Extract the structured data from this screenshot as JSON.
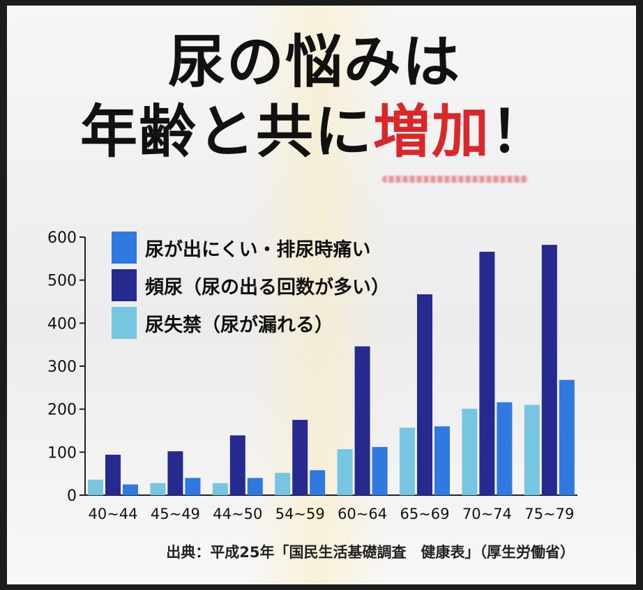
{
  "title": {
    "line1": "尿の悩みは",
    "line2_part1": "年齢と共に",
    "line2_accent": "増加",
    "line2_end": "！"
  },
  "source": "出典：平成25年「国民生活基礎調査　健康表」（厚生労働省）",
  "colors": {
    "series1": "#2f79e0",
    "series2": "#262a8f",
    "series3": "#76c6e2",
    "accent": "#d8282a"
  },
  "chart_data": {
    "type": "bar",
    "categories": [
      "40~44",
      "45~49",
      "44~50",
      "54~59",
      "60~64",
      "65~69",
      "70~74",
      "75~79"
    ],
    "series": [
      {
        "name": "尿が出にくい・排尿時痛い",
        "values": [
          25,
          40,
          40,
          58,
          112,
          160,
          216,
          268
        ]
      },
      {
        "name": "頻尿（尿の出る回数が多い）",
        "values": [
          94,
          102,
          139,
          175,
          346,
          467,
          566,
          582
        ]
      },
      {
        "name": "尿失禁（尿が漏れる）",
        "values": [
          36,
          28,
          28,
          52,
          107,
          157,
          201,
          210
        ]
      }
    ],
    "bar_order": [
      "尿失禁（尿が漏れる）",
      "頻尿（尿の出る回数が多い）",
      "尿が出にくい・排尿時痛い"
    ],
    "yticks": [
      0,
      100,
      200,
      300,
      400,
      500,
      600
    ],
    "ylim": [
      0,
      600
    ],
    "legend_position": "top-left",
    "grid": false
  }
}
